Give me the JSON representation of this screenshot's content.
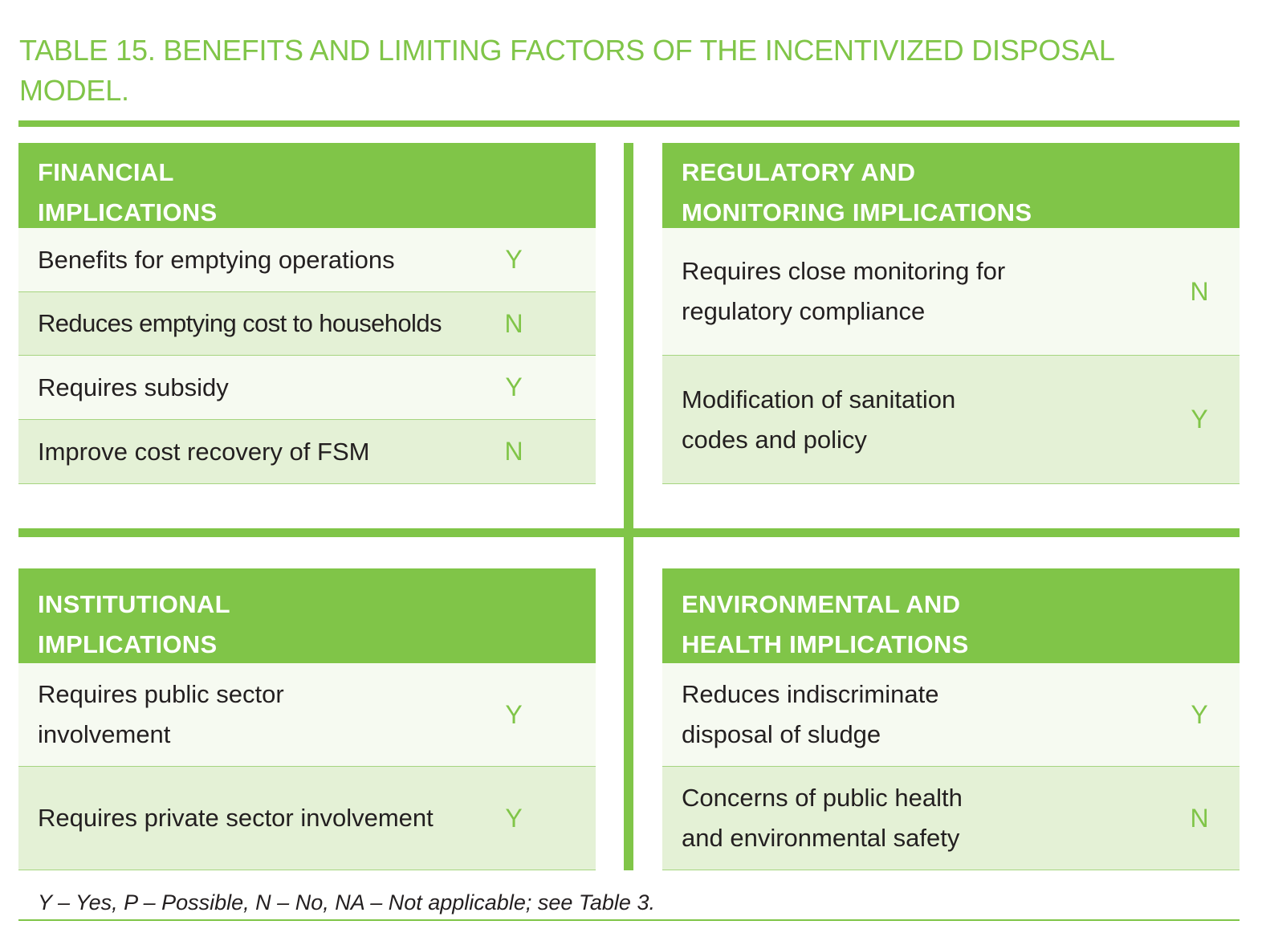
{
  "title": "TABLE 15. BENEFITS AND LIMITING FACTORS OF THE INCENTIVIZED DISPOSAL MODEL.",
  "panels": {
    "financial": {
      "heading": "FINANCIAL IMPLICATIONS",
      "rows": [
        {
          "label": "Benefits for emptying operations",
          "value": "Y"
        },
        {
          "label": "Reduces emptying cost to households",
          "value": "N"
        },
        {
          "label": "Requires subsidy",
          "value": "Y"
        },
        {
          "label": "Improve cost recovery of FSM",
          "value": "N"
        }
      ]
    },
    "regulatory": {
      "heading": "REGULATORY AND MONITORING IMPLICATIONS",
      "rows": [
        {
          "label": "Requires close monitoring for regulatory compliance",
          "value": "N"
        },
        {
          "label": "Modification of sanitation codes and policy",
          "value": "Y"
        }
      ]
    },
    "institutional": {
      "heading": "INSTITUTIONAL IMPLICATIONS",
      "rows": [
        {
          "label": "Requires public sector involvement",
          "value": "Y"
        },
        {
          "label": "Requires private sector involvement",
          "value": "Y"
        }
      ]
    },
    "environmental": {
      "heading": "ENVIRONMENTAL AND HEALTH IMPLICATIONS",
      "rows": [
        {
          "label": "Reduces indiscriminate disposal of sludge",
          "value": "Y"
        },
        {
          "label": "Concerns of public health and environmental safety",
          "value": "N"
        }
      ]
    }
  },
  "footnote": "Y – Yes, P – Possible, N – No, NA – Not applicable; see Table 3.",
  "colors": {
    "accent": "#80c548",
    "row_light": "#f6faf1",
    "row_dark": "#e4f1d6",
    "text": "#231f20"
  }
}
